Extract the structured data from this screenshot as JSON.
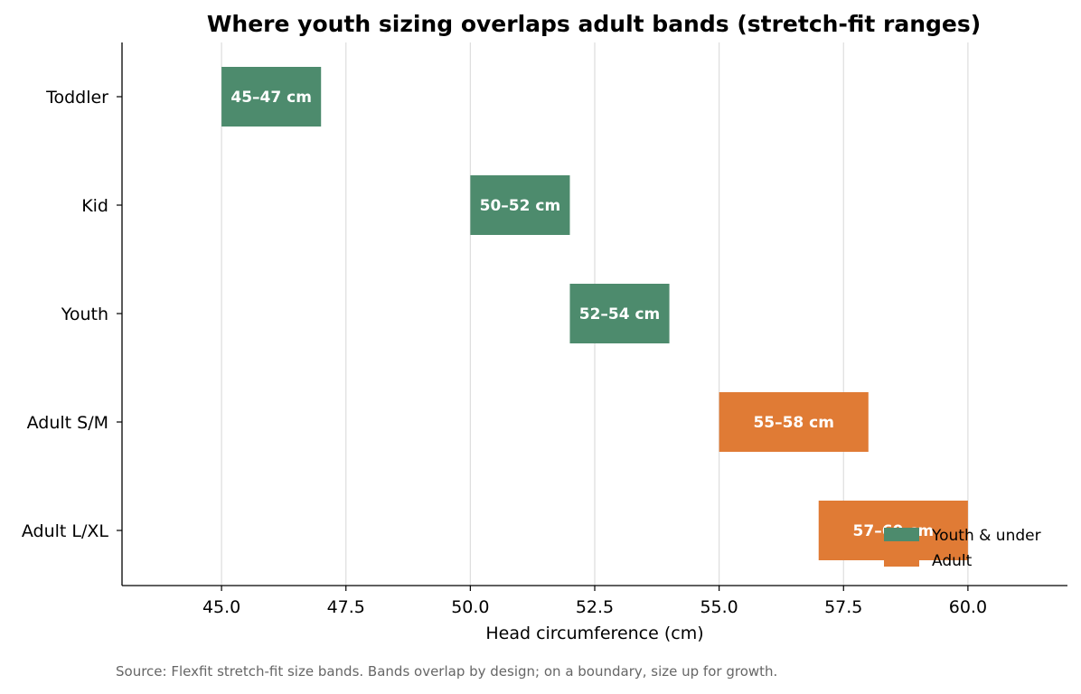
{
  "chart_data": {
    "type": "bar",
    "orientation": "horizontal",
    "title": "Where youth sizing overlaps adult bands (stretch-fit ranges)",
    "xlabel": "Head circumference (cm)",
    "ylabel": "",
    "xlim": [
      43.0,
      62.0
    ],
    "xticks": [
      "45.0",
      "47.5",
      "50.0",
      "52.5",
      "55.0",
      "57.5",
      "60.0"
    ],
    "grid": "vertical",
    "legend_position": "bottom-right",
    "categories": [
      "Toddler",
      "Kid",
      "Youth",
      "Adult S/M",
      "Adult L/XL"
    ],
    "bars": [
      {
        "category": "Toddler",
        "start": 45,
        "end": 47,
        "label": "45–47 cm",
        "group": "Youth & under"
      },
      {
        "category": "Kid",
        "start": 50,
        "end": 52,
        "label": "50–52 cm",
        "group": "Youth & under"
      },
      {
        "category": "Youth",
        "start": 52,
        "end": 54,
        "label": "52–54 cm",
        "group": "Youth & under"
      },
      {
        "category": "Adult S/M",
        "start": 55,
        "end": 58,
        "label": "55–58 cm",
        "group": "Adult"
      },
      {
        "category": "Adult L/XL",
        "start": 57,
        "end": 60,
        "label": "57–60 cm",
        "group": "Adult"
      }
    ],
    "legend": [
      {
        "name": "Youth & under",
        "color": "#4d8b6d"
      },
      {
        "name": "Adult",
        "color": "#e07b35"
      }
    ]
  },
  "source_note": "Source: Flexfit stretch-fit size bands. Bands overlap by design; on a boundary, size up for growth."
}
